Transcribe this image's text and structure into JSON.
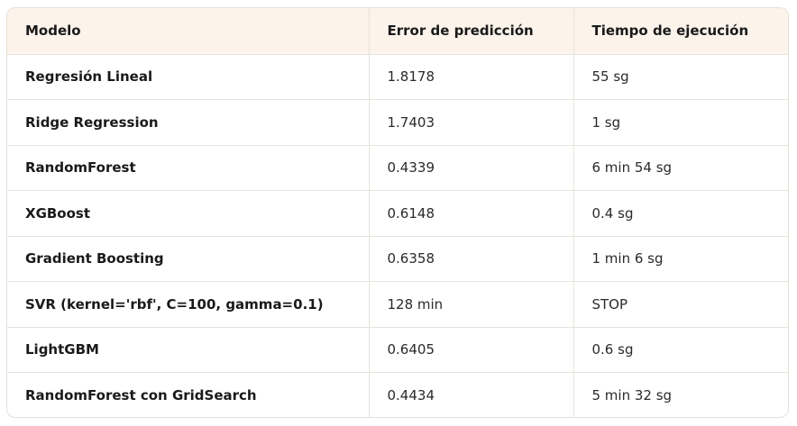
{
  "table": {
    "headers": [
      "Modelo",
      "Error de predicción",
      "Tiempo de ejecución"
    ],
    "rows": [
      [
        "Regresión Lineal",
        "1.8178",
        "55 sg"
      ],
      [
        "Ridge Regression",
        "1.7403",
        "1 sg"
      ],
      [
        "RandomForest",
        "0.4339",
        "6 min 54 sg"
      ],
      [
        "XGBoost",
        "0.6148",
        "0.4 sg"
      ],
      [
        "Gradient Boosting",
        "0.6358",
        "1 min 6 sg"
      ],
      [
        "SVR (kernel='rbf', C=100, gamma=0.1)",
        "128 min",
        "STOP"
      ],
      [
        "LightGBM",
        "0.6405",
        "0.6 sg"
      ],
      [
        "RandomForest con GridSearch",
        "0.4434",
        "5 min 32 sg"
      ]
    ]
  }
}
